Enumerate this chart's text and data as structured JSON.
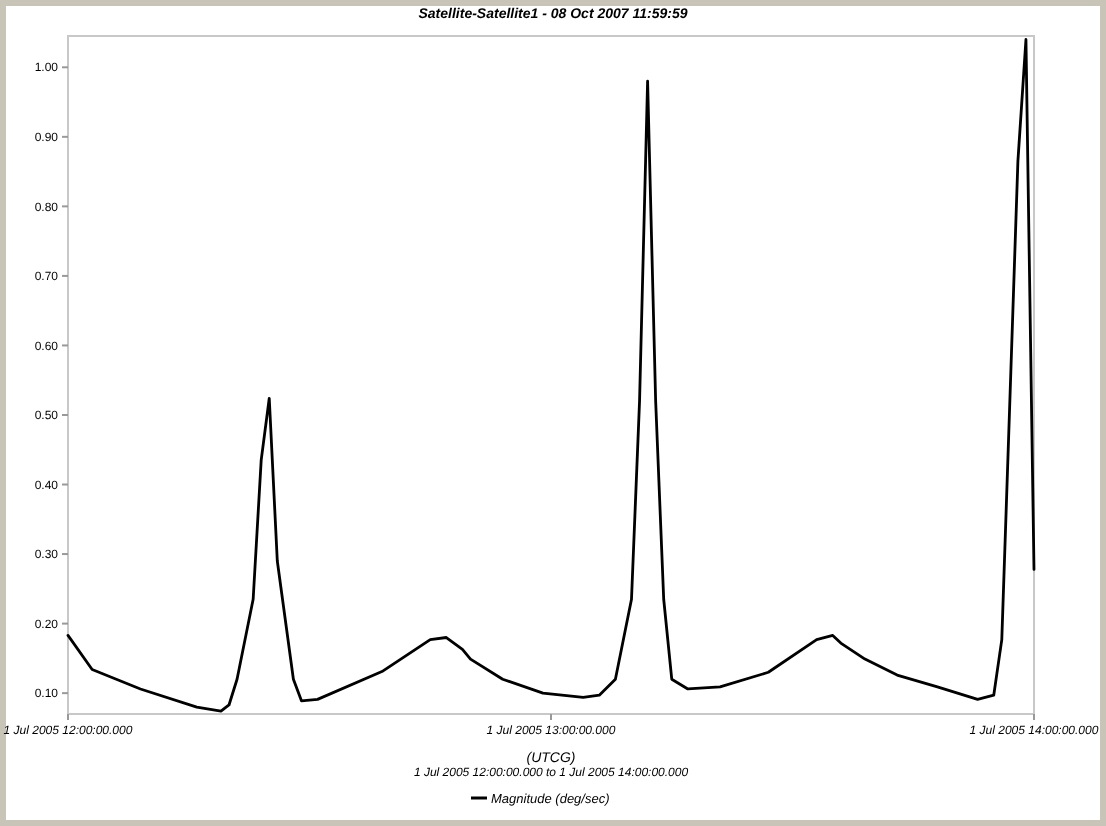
{
  "chart_data": {
    "type": "line",
    "title": "Satellite-Satellite1 - 08 Oct 2007 11:59:59",
    "xlabel": "(UTCG)",
    "annotations": [
      "1 Jul 2005 12:00:00.000  to  1 Jul 2005 14:00:00.000"
    ],
    "series": [
      {
        "name": "Magnitude (deg/sec)",
        "color": "#000000",
        "x": [
          "2005-07-01T12:00",
          "2005-07-01T12:03",
          "2005-07-01T12:09",
          "2005-07-01T12:16",
          "2005-07-01T12:19",
          "2005-07-01T12:20",
          "2005-07-01T12:21",
          "2005-07-01T12:23",
          "2005-07-01T12:24",
          "2005-07-01T12:25",
          "2005-07-01T12:26",
          "2005-07-01T12:28",
          "2005-07-01T12:29",
          "2005-07-01T12:31",
          "2005-07-01T12:39",
          "2005-07-01T12:45",
          "2005-07-01T12:47",
          "2005-07-01T12:49",
          "2005-07-01T12:50",
          "2005-07-01T12:54",
          "2005-07-01T12:59",
          "2005-07-01T13:04",
          "2005-07-01T13:06",
          "2005-07-01T13:08",
          "2005-07-01T13:10",
          "2005-07-01T13:11",
          "2005-07-01T13:12",
          "2005-07-01T13:13",
          "2005-07-01T13:14",
          "2005-07-01T13:15",
          "2005-07-01T13:17",
          "2005-07-01T13:21",
          "2005-07-01T13:27",
          "2005-07-01T13:33",
          "2005-07-01T13:35",
          "2005-07-01T13:36",
          "2005-07-01T13:39",
          "2005-07-01T13:43",
          "2005-07-01T13:48",
          "2005-07-01T13:53",
          "2005-07-01T13:55",
          "2005-07-01T13:56",
          "2005-07-01T13:57",
          "2005-07-01T13:58",
          "2005-07-01T13:59",
          "2005-07-01T14:00"
        ],
        "values": [
          0.183,
          0.134,
          0.106,
          0.08,
          0.074,
          0.083,
          0.12,
          0.235,
          0.435,
          0.524,
          0.29,
          0.12,
          0.089,
          0.091,
          0.131,
          0.177,
          0.18,
          0.163,
          0.149,
          0.12,
          0.1,
          0.094,
          0.097,
          0.12,
          0.235,
          0.52,
          0.98,
          0.52,
          0.235,
          0.12,
          0.106,
          0.109,
          0.13,
          0.177,
          0.183,
          0.172,
          0.149,
          0.126,
          0.109,
          0.091,
          0.097,
          0.177,
          0.52,
          0.865,
          1.04,
          0.278
        ]
      }
    ],
    "xlim": [
      "2005-07-01T12:00",
      "2005-07-01T14:00"
    ],
    "xticks": [
      {
        "value": "2005-07-01T12:00",
        "label": "1 Jul 2005 12:00:00.000"
      },
      {
        "value": "2005-07-01T13:00",
        "label": "1 Jul 2005 13:00:00.000"
      },
      {
        "value": "2005-07-01T14:00",
        "label": "1 Jul 2005 14:00:00.000"
      }
    ],
    "ylim": [
      0.07,
      1.045
    ],
    "yticks": [
      {
        "value": 0.1,
        "label": "0.10"
      },
      {
        "value": 0.2,
        "label": "0.20"
      },
      {
        "value": 0.3,
        "label": "0.30"
      },
      {
        "value": 0.4,
        "label": "0.40"
      },
      {
        "value": 0.5,
        "label": "0.50"
      },
      {
        "value": 0.6,
        "label": "0.60"
      },
      {
        "value": 0.7,
        "label": "0.70"
      },
      {
        "value": 0.8,
        "label": "0.80"
      },
      {
        "value": 0.9,
        "label": "0.90"
      },
      {
        "value": 1.0,
        "label": "1.00"
      }
    ],
    "grid": false,
    "legend": "bottom",
    "line_style": "solid",
    "marker": "none"
  }
}
